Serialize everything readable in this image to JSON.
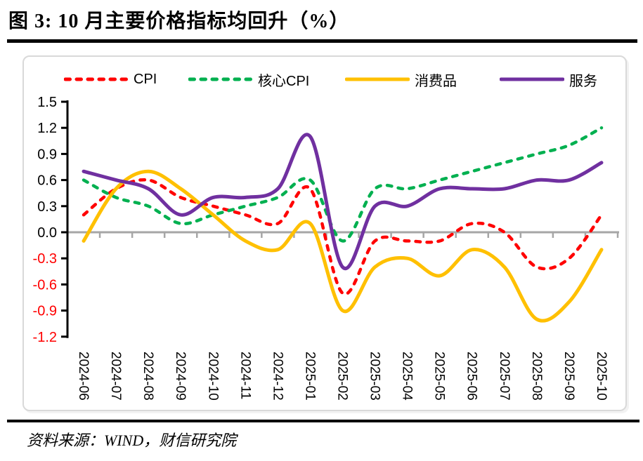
{
  "header": {
    "title": "图 3: 10 月主要价格指标均回升（%）"
  },
  "footer": {
    "source": "资料来源：WIND，财信研究院"
  },
  "chart_data": {
    "type": "line",
    "title": "图 3: 10 月主要价格指标均回升（%）",
    "categories": [
      "2024-06",
      "2024-07",
      "2024-08",
      "2024-09",
      "2024-10",
      "2024-11",
      "2024-12",
      "2025-01",
      "2025-02",
      "2025-03",
      "2025-04",
      "2025-05",
      "2025-06",
      "2025-07",
      "2025-08",
      "2025-09",
      "2025-10"
    ],
    "series": [
      {
        "name": "CPI",
        "color": "#FF0000",
        "dashed": true,
        "values": [
          0.2,
          0.5,
          0.6,
          0.4,
          0.3,
          0.2,
          0.1,
          0.5,
          -0.7,
          -0.1,
          -0.1,
          -0.1,
          0.1,
          0.0,
          -0.4,
          -0.3,
          0.2
        ]
      },
      {
        "name": "核心CPI",
        "color": "#00B050",
        "dashed": true,
        "values": [
          0.6,
          0.4,
          0.3,
          0.1,
          0.2,
          0.3,
          0.4,
          0.6,
          -0.1,
          0.5,
          0.5,
          0.6,
          0.7,
          0.8,
          0.9,
          1.0,
          1.2
        ]
      },
      {
        "name": "消费品",
        "color": "#FFC000",
        "dashed": false,
        "values": [
          -0.1,
          0.5,
          0.7,
          0.5,
          0.2,
          -0.1,
          -0.2,
          0.1,
          -0.9,
          -0.4,
          -0.3,
          -0.5,
          -0.2,
          -0.4,
          -1.0,
          -0.8,
          -0.2
        ]
      },
      {
        "name": "服务",
        "color": "#7030A0",
        "dashed": false,
        "values": [
          0.7,
          0.6,
          0.5,
          0.2,
          0.4,
          0.4,
          0.5,
          1.1,
          -0.4,
          0.3,
          0.3,
          0.5,
          0.5,
          0.5,
          0.6,
          0.6,
          0.8
        ]
      }
    ],
    "ylim": [
      -1.2,
      1.5
    ],
    "ytick_step": 0.3,
    "xlabel": "",
    "ylabel": "",
    "grid": "off",
    "legend_position": "top",
    "line_style": "smooth",
    "colors": {
      "zero_line": "#A6A6A6",
      "x_tick": "#A6A6A6",
      "y_axis": "#000000",
      "y_label_positive": "#000000",
      "y_label_negative": "#FF0000",
      "x_label": "#000000"
    }
  }
}
